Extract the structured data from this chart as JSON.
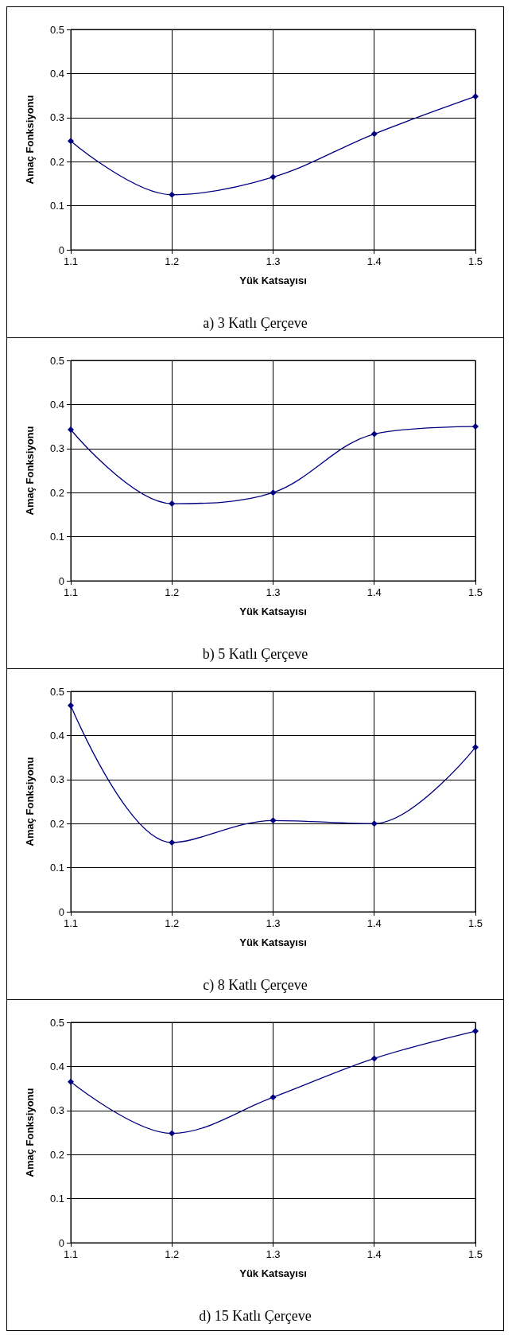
{
  "chart_data": [
    {
      "type": "line",
      "title": "a) 3 Katlı Çerçeve",
      "xlabel": "Yük Katsayısı",
      "ylabel": "Amaç Fonksiyonu",
      "x": [
        1.1,
        1.2,
        1.3,
        1.4,
        1.5
      ],
      "series": [
        {
          "color": "#000080",
          "values": [
            0.247,
            0.125,
            0.165,
            0.263,
            0.348
          ]
        }
      ],
      "xlim": [
        1.1,
        1.5
      ],
      "xticks": [
        1.1,
        1.2,
        1.3,
        1.4,
        1.5
      ],
      "ylim": [
        0,
        0.5
      ],
      "yticks": [
        0,
        0.1,
        0.2,
        0.3,
        0.4,
        0.5
      ],
      "grid": true,
      "marker": "diamond",
      "line_style": "solid"
    },
    {
      "type": "line",
      "title": "b) 5 Katlı Çerçeve",
      "xlabel": "Yük Katsayısı",
      "ylabel": "Amaç Fonksiyonu",
      "x": [
        1.1,
        1.2,
        1.3,
        1.4,
        1.5
      ],
      "series": [
        {
          "color": "#000080",
          "values": [
            0.343,
            0.175,
            0.2,
            0.333,
            0.35
          ]
        }
      ],
      "xlim": [
        1.1,
        1.5
      ],
      "xticks": [
        1.1,
        1.2,
        1.3,
        1.4,
        1.5
      ],
      "ylim": [
        0,
        0.5
      ],
      "yticks": [
        0,
        0.1,
        0.2,
        0.3,
        0.4,
        0.5
      ],
      "grid": true,
      "marker": "diamond",
      "line_style": "solid"
    },
    {
      "type": "line",
      "title": "c) 8 Katlı Çerçeve",
      "xlabel": "Yük Katsayısı",
      "ylabel": "Amaç Fonksiyonu",
      "x": [
        1.1,
        1.2,
        1.3,
        1.4,
        1.5
      ],
      "series": [
        {
          "color": "#000080",
          "values": [
            0.468,
            0.157,
            0.207,
            0.2,
            0.373
          ]
        }
      ],
      "xlim": [
        1.1,
        1.5
      ],
      "xticks": [
        1.1,
        1.2,
        1.3,
        1.4,
        1.5
      ],
      "ylim": [
        0,
        0.5
      ],
      "yticks": [
        0,
        0.1,
        0.2,
        0.3,
        0.4,
        0.5
      ],
      "grid": true,
      "marker": "diamond",
      "line_style": "solid"
    },
    {
      "type": "line",
      "title": "d) 15 Katlı Çerçeve",
      "xlabel": "Yük Katsayısı",
      "ylabel": "Amaç Fonksiyonu",
      "x": [
        1.1,
        1.2,
        1.3,
        1.4,
        1.5
      ],
      "series": [
        {
          "color": "#000080",
          "values": [
            0.365,
            0.248,
            0.33,
            0.418,
            0.48
          ]
        }
      ],
      "xlim": [
        1.1,
        1.5
      ],
      "xticks": [
        1.1,
        1.2,
        1.3,
        1.4,
        1.5
      ],
      "ylim": [
        0,
        0.5
      ],
      "yticks": [
        0,
        0.1,
        0.2,
        0.3,
        0.4,
        0.5
      ],
      "grid": true,
      "marker": "diamond",
      "line_style": "solid"
    }
  ]
}
